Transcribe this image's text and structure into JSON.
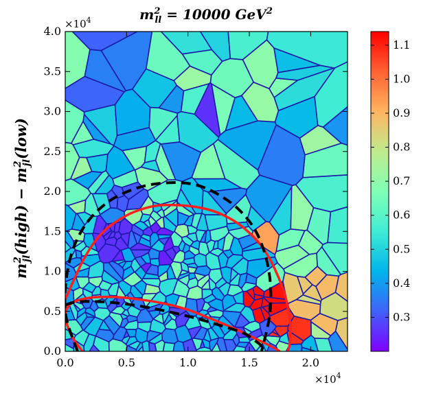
{
  "chart_data": {
    "type": "heatmap",
    "subtype": "voronoi-tessellation",
    "title_parts": {
      "base": "m",
      "sup": "2",
      "sub": "ll",
      "rest": " = 10000 GeV",
      "rest_sup": "2"
    },
    "ylabel_parts": {
      "a": "m",
      "a_sup": "2",
      "a_sub": "jl",
      "b": "(high) − m",
      "b_sup": "2",
      "b_sub": "jl",
      "c": "(low)"
    },
    "xlabel": "",
    "x_multiplier": {
      "base": "×10",
      "exp": "4"
    },
    "y_multiplier": {
      "base": "×10",
      "exp": "4"
    },
    "x_scale": 10000,
    "y_scale": 10000,
    "xlim": [
      0,
      23000
    ],
    "ylim": [
      0,
      40000
    ],
    "x_ticks": [
      0,
      5000,
      10000,
      15000,
      20000
    ],
    "x_tick_labels": [
      "0.0",
      "0.5",
      "1.0",
      "1.5",
      "2.0"
    ],
    "y_ticks": [
      0,
      5000,
      10000,
      15000,
      20000,
      25000,
      30000,
      35000,
      40000
    ],
    "y_tick_labels": [
      "0.0",
      "0.5",
      "1.0",
      "1.5",
      "2.0",
      "2.5",
      "3.0",
      "3.5",
      "4.0"
    ],
    "colorbar": {
      "range": [
        0.2,
        1.14
      ],
      "ticks": [
        0.3,
        0.4,
        0.5,
        0.6,
        0.7,
        0.8,
        0.9,
        1.0,
        1.1
      ],
      "tick_labels": [
        "0.3",
        "0.4",
        "0.5",
        "0.6",
        "0.7",
        "0.8",
        "0.9",
        "1.0",
        "1.1"
      ],
      "colormap": "rainbow"
    },
    "regions": [
      {
        "x": [
          0,
          6000
        ],
        "y": [
          0,
          7000
        ],
        "mean": 0.45,
        "spread": 0.17
      },
      {
        "x": [
          2000,
          9000
        ],
        "y": [
          10000,
          16000
        ],
        "mean": 0.38,
        "spread": 0.15
      },
      {
        "x": [
          6000,
          17000
        ],
        "y": [
          0,
          6000
        ],
        "mean": 0.45,
        "spread": 0.18
      },
      {
        "x": [
          0,
          8000
        ],
        "y": [
          30000,
          40000
        ],
        "mean": 0.5,
        "spread": 0.2
      },
      {
        "x": [
          14000,
          19000
        ],
        "y": [
          24000,
          31000
        ],
        "mean": 0.42,
        "spread": 0.15
      },
      {
        "x": [
          17000,
          23000
        ],
        "y": [
          2000,
          10000
        ],
        "mean": 0.82,
        "spread": 0.1
      },
      {
        "x": [
          18000,
          23000
        ],
        "y": [
          10000,
          24000
        ],
        "mean": 0.66,
        "spread": 0.1
      },
      {
        "x": [
          9000,
          18000
        ],
        "y": [
          30000,
          40000
        ],
        "mean": 0.6,
        "spread": 0.14
      },
      {
        "x": [
          0,
          23000
        ],
        "y": [
          0,
          40000
        ],
        "mean": 0.55,
        "spread": 0.18
      }
    ],
    "hot_spots": [
      {
        "x": 17300,
        "y": 14200,
        "value": 0.93
      },
      {
        "x": 16200,
        "y": 6100,
        "value": 1.12
      },
      {
        "x": 18300,
        "y": 3000,
        "value": 1.08
      },
      {
        "x": 18800,
        "y": 8300,
        "value": 0.86
      },
      {
        "x": 21000,
        "y": 6500,
        "value": 0.82
      },
      {
        "x": 5000,
        "y": 19000,
        "value": 0.31
      },
      {
        "x": 12200,
        "y": 29300,
        "value": 0.26
      },
      {
        "x": 13000,
        "y": 37000,
        "value": 0.28
      },
      {
        "x": 3700,
        "y": 13500,
        "value": 0.26
      },
      {
        "x": 3700,
        "y": 15000,
        "value": 0.26
      }
    ],
    "overlays": [
      {
        "name": "red-upper-ellipse",
        "color": "#ff1f1f",
        "style": "solid",
        "x": [
          0,
          1500,
          3000,
          5000,
          7000,
          8600,
          10500,
          12500,
          14500,
          16300,
          17700,
          18300,
          18300,
          18100
        ],
        "y": [
          6500,
          11500,
          14800,
          17000,
          18100,
          18300,
          18100,
          17300,
          15500,
          12500,
          8000,
          4000,
          1000,
          0
        ]
      },
      {
        "name": "red-lower-curve",
        "color": "#ff1f1f",
        "style": "solid",
        "x": [
          1400,
          500,
          0,
          500,
          2000,
          4000,
          6000,
          8000,
          10000,
          12000,
          14000,
          15500,
          16800,
          17500
        ],
        "y": [
          0,
          2000,
          4500,
          6000,
          6700,
          6800,
          6500,
          6000,
          5200,
          4000,
          2700,
          1600,
          600,
          0
        ]
      },
      {
        "name": "black-dashed-outer",
        "color": "#000000",
        "style": "dashed",
        "x": [
          1000,
          0,
          300,
          1500,
          3500,
          6000,
          8500,
          10700,
          12600,
          14300,
          15700,
          16600,
          16700,
          16000
        ],
        "y": [
          0,
          5000,
          11000,
          15500,
          18700,
          20500,
          21100,
          20800,
          19500,
          17500,
          14500,
          10000,
          5000,
          0
        ]
      },
      {
        "name": "black-dashed-inner",
        "color": "#000000",
        "style": "dashed",
        "x": [
          0,
          1000,
          3000,
          5500,
          8000,
          10500,
          12500,
          14500,
          15500,
          16000,
          15800
        ],
        "y": [
          5800,
          6200,
          6200,
          5800,
          5100,
          4200,
          3300,
          2300,
          1300,
          600,
          0
        ]
      }
    ]
  }
}
